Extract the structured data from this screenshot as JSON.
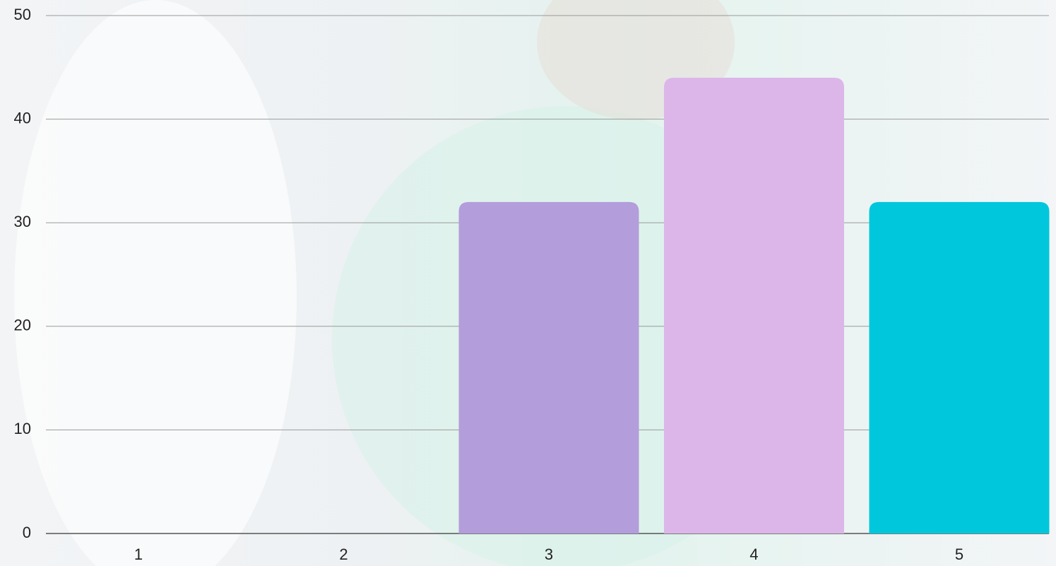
{
  "chart_data": {
    "type": "bar",
    "categories": [
      "1",
      "2",
      "3",
      "4",
      "5"
    ],
    "values": [
      0,
      0,
      32,
      44,
      32
    ],
    "colors": [
      "#90caf9",
      "#a5d6a7",
      "#b39ddb",
      "#dcb6e8",
      "#00c7db"
    ],
    "ylim": [
      0,
      50
    ],
    "yticks": [
      0,
      10,
      20,
      30,
      40,
      50
    ],
    "grid": true
  }
}
